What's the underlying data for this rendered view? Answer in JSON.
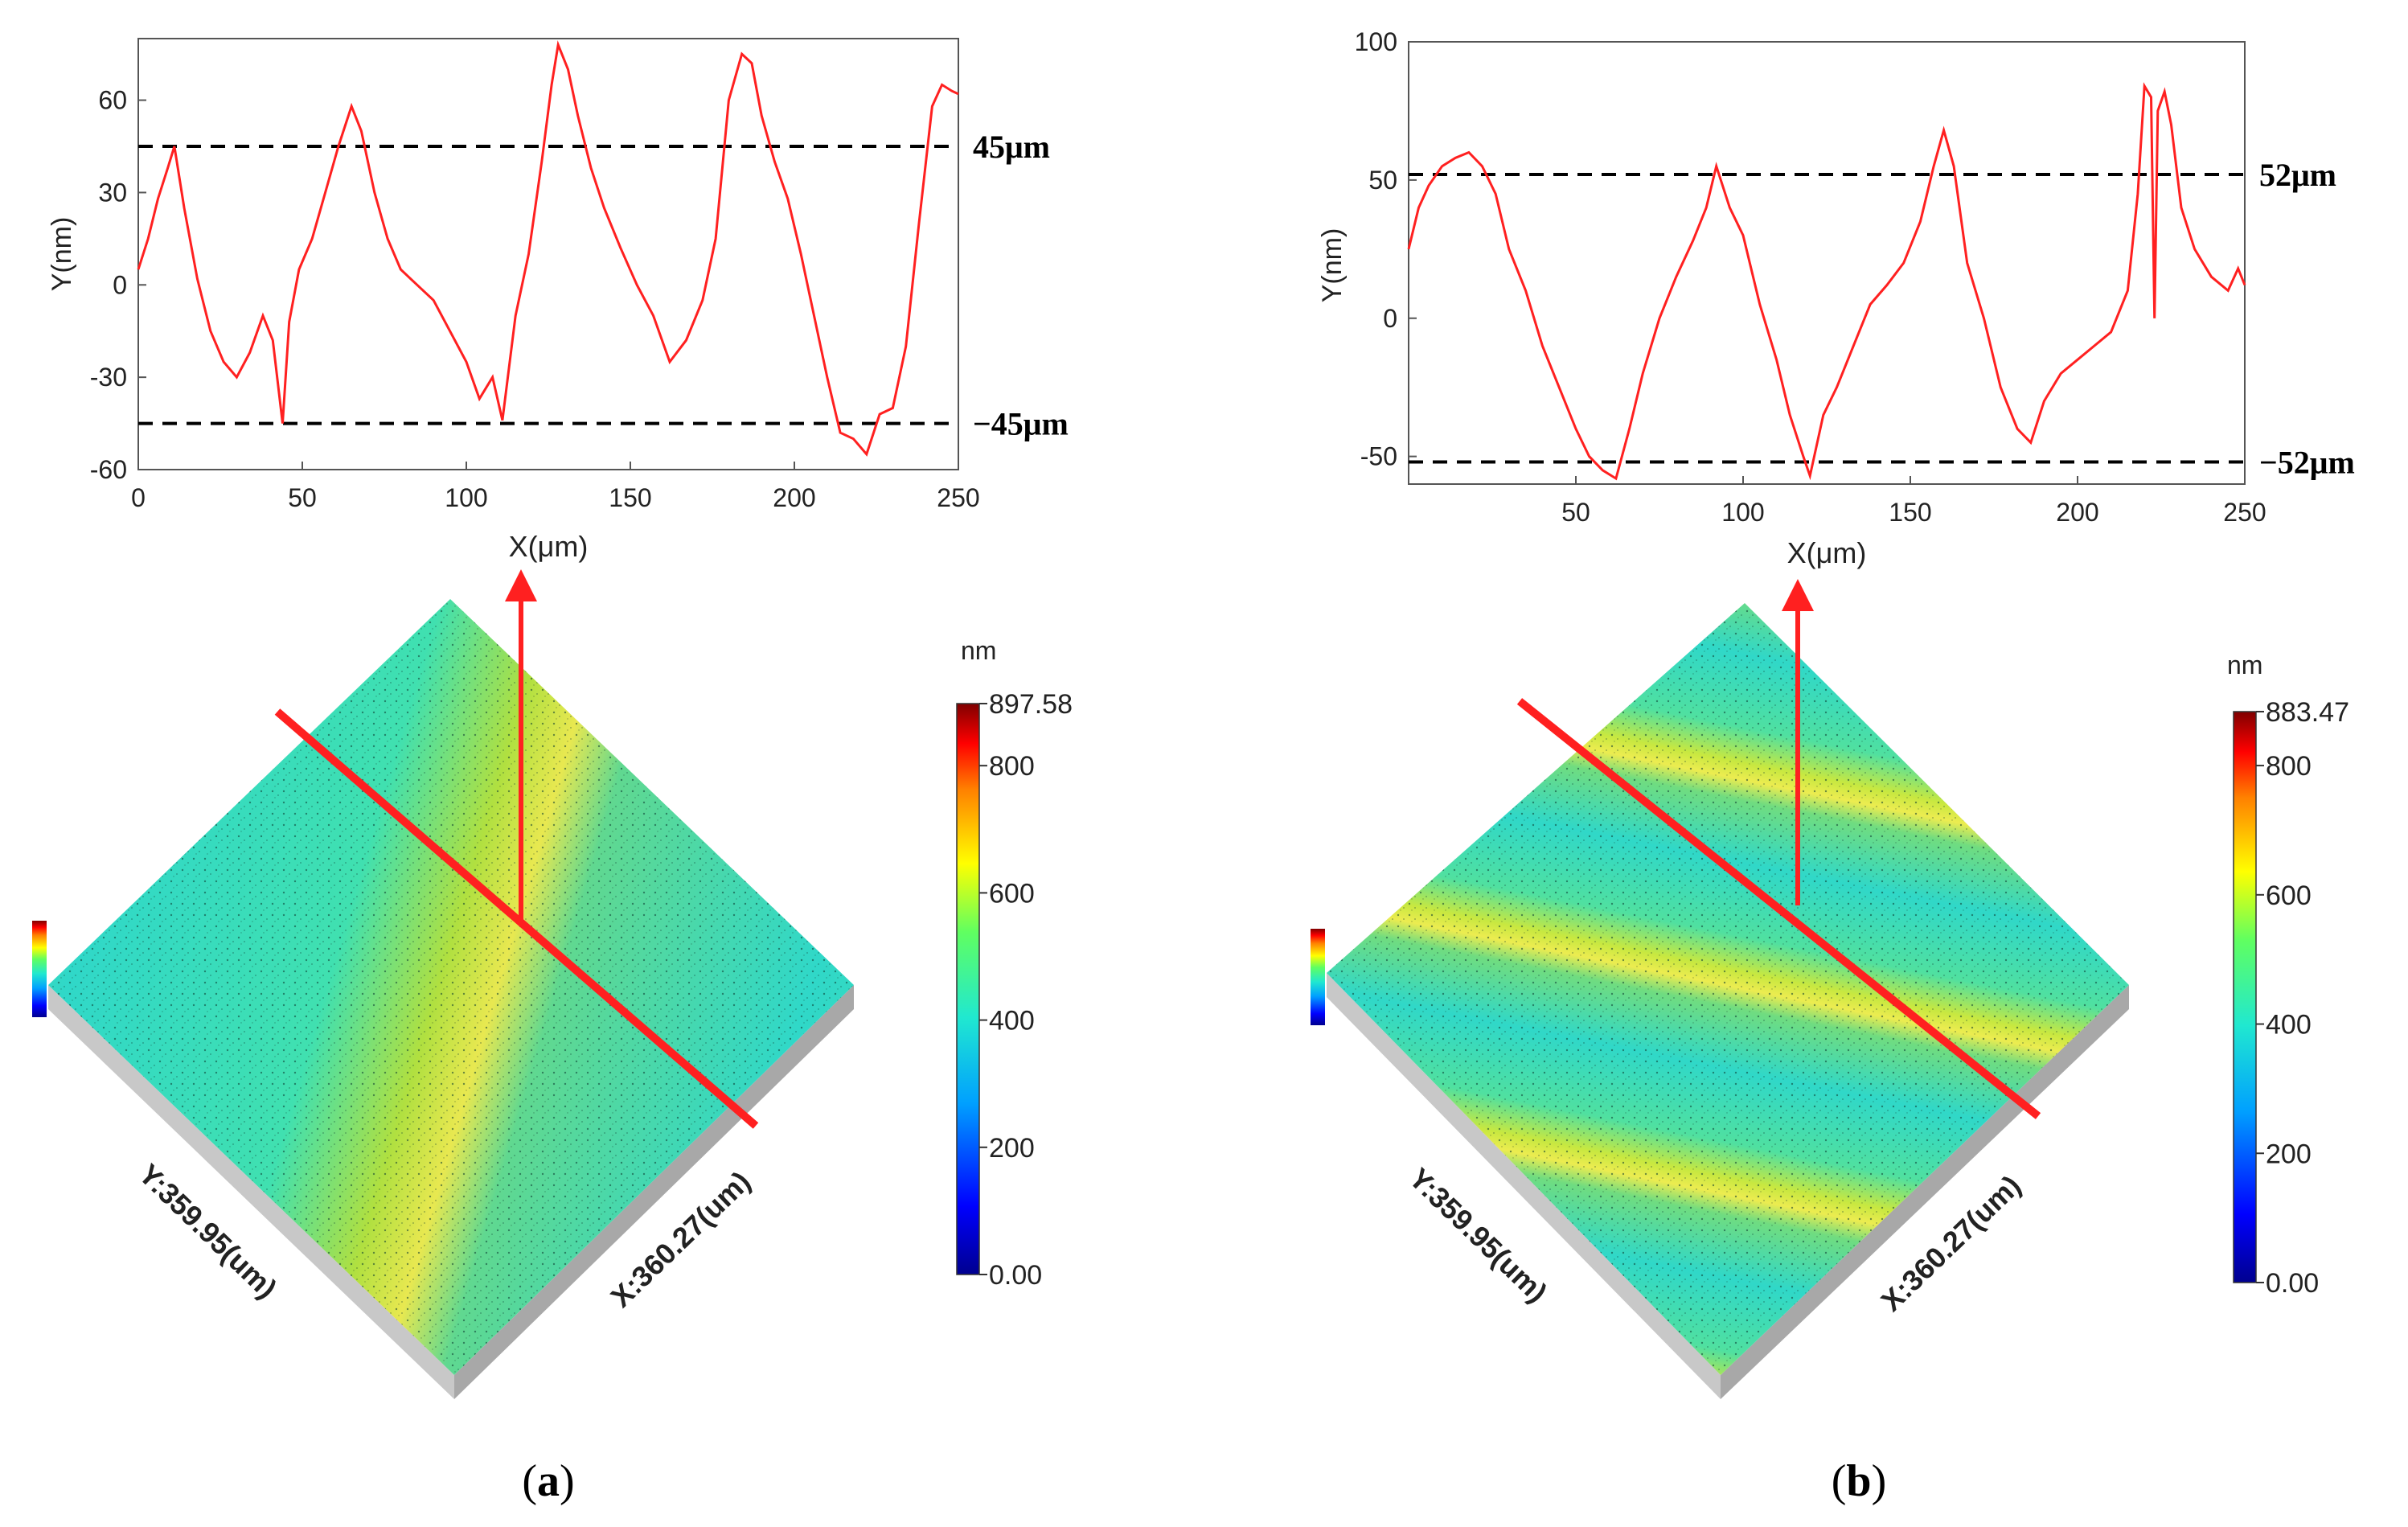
{
  "chart_data": [
    {
      "type": "line",
      "panel": "a",
      "caption_open": "(",
      "caption_letter": "a",
      "caption_close": ")",
      "xlabel": "X(μm)",
      "ylabel": "Y(nm)",
      "xlim": [
        0,
        250
      ],
      "ylim": [
        -60,
        80
      ],
      "xticks": [
        0,
        50,
        100,
        150,
        200,
        250
      ],
      "yticks": [
        -60,
        -30,
        0,
        30,
        60
      ],
      "line_color": "#ff2020",
      "ref_lines": [
        {
          "y": 45,
          "label": "45μm"
        },
        {
          "y": -45,
          "label": "−45μm"
        }
      ],
      "series": [
        {
          "name": "profile",
          "x": [
            0,
            3,
            6,
            9,
            11,
            14,
            18,
            22,
            26,
            30,
            34,
            38,
            41,
            44,
            46,
            49,
            53,
            57,
            61,
            65,
            68,
            72,
            76,
            80,
            85,
            90,
            95,
            100,
            104,
            108,
            111,
            115,
            119,
            123,
            126,
            128,
            131,
            134,
            138,
            142,
            147,
            152,
            157,
            162,
            167,
            172,
            176,
            180,
            184,
            187,
            190,
            194,
            198,
            202,
            206,
            210,
            214,
            218,
            222,
            226,
            230,
            234,
            238,
            242,
            245,
            248,
            250
          ],
          "y": [
            5,
            15,
            28,
            38,
            45,
            25,
            2,
            -15,
            -25,
            -30,
            -22,
            -10,
            -18,
            -45,
            -12,
            5,
            15,
            30,
            45,
            58,
            50,
            30,
            15,
            5,
            0,
            -5,
            -15,
            -25,
            -37,
            -30,
            -44,
            -10,
            10,
            40,
            65,
            78,
            70,
            55,
            38,
            25,
            12,
            0,
            -10,
            -25,
            -18,
            -5,
            15,
            60,
            75,
            72,
            55,
            40,
            28,
            10,
            -10,
            -30,
            -48,
            -50,
            -55,
            -42,
            -40,
            -20,
            20,
            58,
            65,
            63,
            62
          ]
        }
      ],
      "map3d": {
        "y_axis_label": "Y:359.95(um)",
        "x_axis_label": "X:360.27(um)",
        "colorbar_unit": "nm",
        "colorbar_ticks": [
          "897.58",
          "800",
          "600",
          "400",
          "200",
          "0.00"
        ]
      }
    },
    {
      "type": "line",
      "panel": "b",
      "caption_open": "(",
      "caption_letter": "b",
      "caption_close": ")",
      "xlabel": "X(μm)",
      "ylabel": "Y(nm)",
      "xlim": [
        0,
        250
      ],
      "ylim": [
        -60,
        100
      ],
      "xticks": [
        50,
        100,
        150,
        200,
        250
      ],
      "yticks": [
        -50,
        0,
        50,
        100
      ],
      "line_color": "#ff2020",
      "ref_lines": [
        {
          "y": 52,
          "label": "52μm"
        },
        {
          "y": -52,
          "label": "−52μm"
        }
      ],
      "series": [
        {
          "name": "profile",
          "x": [
            0,
            3,
            6,
            10,
            14,
            18,
            22,
            26,
            30,
            35,
            40,
            45,
            50,
            54,
            58,
            62,
            66,
            70,
            75,
            80,
            85,
            89,
            92,
            96,
            100,
            105,
            110,
            114,
            118,
            120,
            124,
            128,
            133,
            138,
            143,
            148,
            153,
            157,
            160,
            163,
            167,
            172,
            177,
            182,
            186,
            190,
            195,
            200,
            205,
            210,
            215,
            218,
            220,
            222,
            223,
            224,
            226,
            228,
            231,
            235,
            240,
            245,
            248,
            250
          ],
          "y": [
            25,
            40,
            48,
            55,
            58,
            60,
            55,
            45,
            25,
            10,
            -10,
            -25,
            -40,
            -50,
            -55,
            -58,
            -40,
            -20,
            0,
            15,
            28,
            40,
            55,
            40,
            30,
            5,
            -15,
            -35,
            -50,
            -57,
            -35,
            -25,
            -10,
            5,
            12,
            20,
            35,
            55,
            68,
            55,
            20,
            0,
            -25,
            -40,
            -45,
            -30,
            -20,
            -15,
            -10,
            -5,
            10,
            45,
            84,
            80,
            0,
            75,
            82,
            70,
            40,
            25,
            15,
            10,
            18,
            12
          ]
        }
      ],
      "map3d": {
        "y_axis_label": "Y:359.95(um)",
        "x_axis_label": "X:360.27(um)",
        "colorbar_unit": "nm",
        "colorbar_ticks": [
          "883.47",
          "800",
          "600",
          "400",
          "200",
          "0.00"
        ]
      }
    }
  ]
}
